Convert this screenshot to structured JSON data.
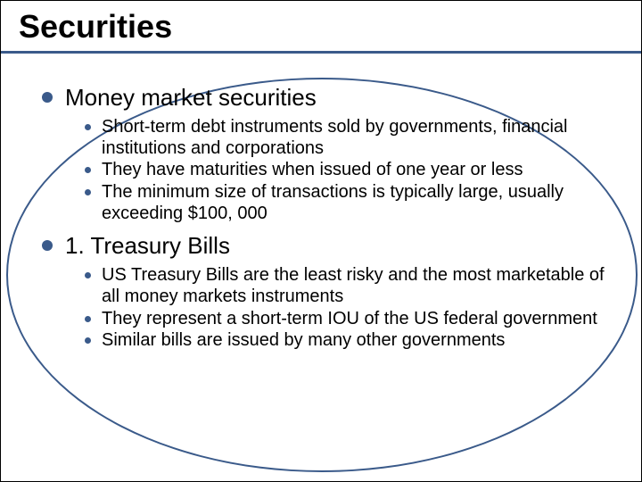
{
  "colors": {
    "accent": "#3a5a8a",
    "text": "#000000",
    "background": "#ffffff",
    "border": "#000000"
  },
  "typography": {
    "title_fontsize": 36,
    "l1_fontsize": 26,
    "l2_fontsize": 20,
    "font_family": "Arial"
  },
  "title": "Securities",
  "sections": [
    {
      "heading": "Money market securities",
      "items": [
        "Short-term debt instruments sold by governments, financial institutions and corporations",
        "They have maturities when issued of one year or less",
        "The minimum size of transactions is typically large, usually exceeding $100, 000"
      ]
    },
    {
      "heading": "1. Treasury Bills",
      "items": [
        "US Treasury Bills are the least risky and the most marketable of all money markets instruments",
        "They represent a short-term IOU of the US federal government",
        "Similar bills are issued by many other governments"
      ]
    }
  ]
}
